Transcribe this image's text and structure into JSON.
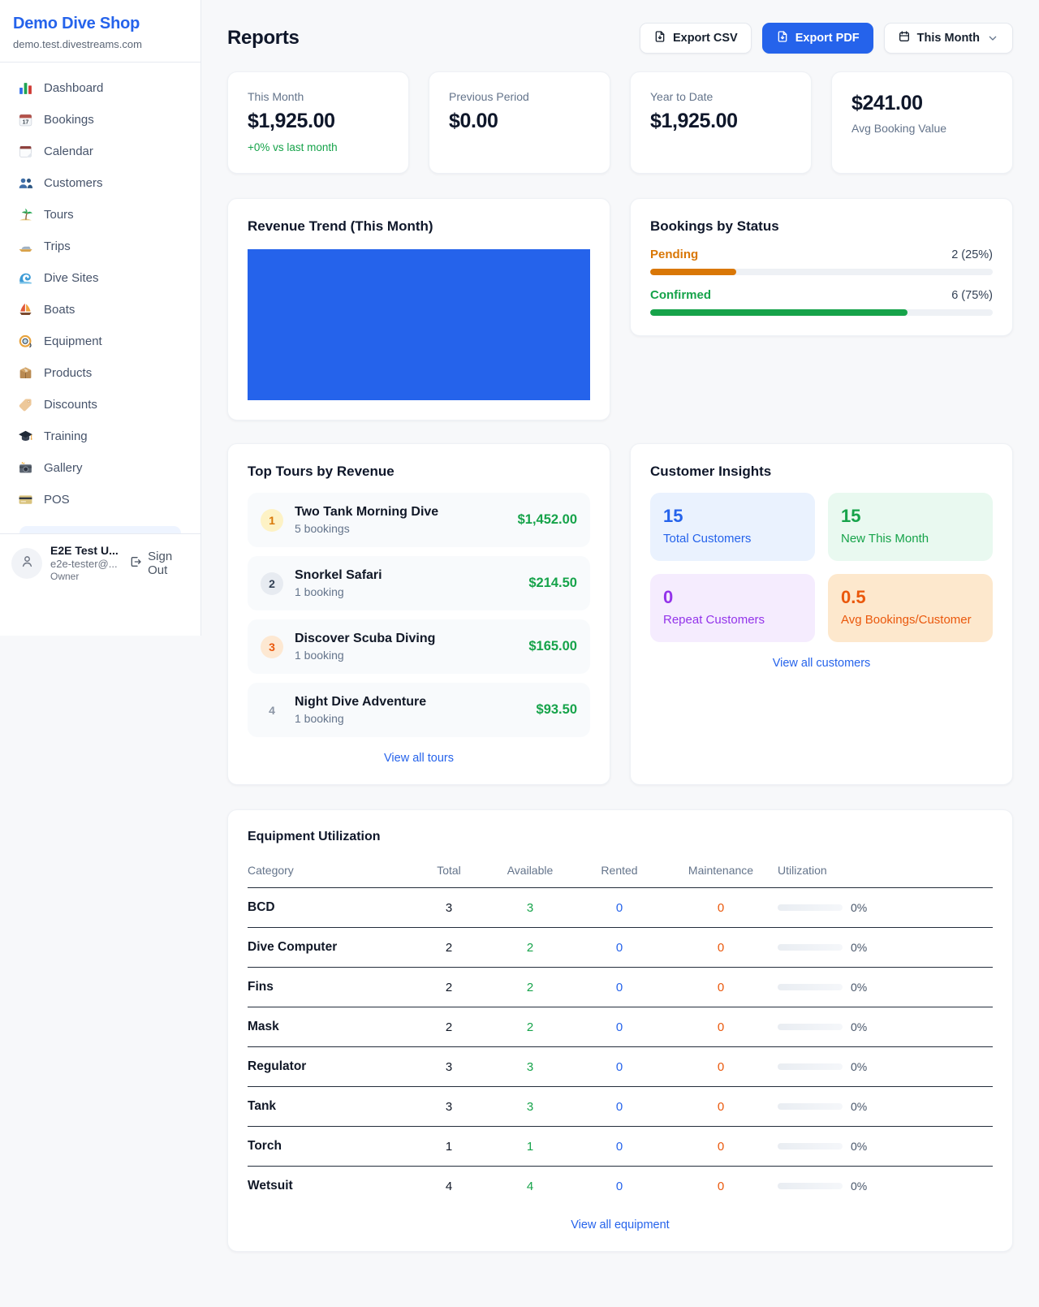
{
  "sidebar": {
    "shop_name": "Demo Dive Shop",
    "shop_domain": "demo.test.divestreams.com",
    "items": [
      {
        "label": "Dashboard",
        "icon": "bar-chart-icon"
      },
      {
        "label": "Bookings",
        "icon": "calendar-date-icon"
      },
      {
        "label": "Calendar",
        "icon": "tear-calendar-icon"
      },
      {
        "label": "Customers",
        "icon": "users-icon"
      },
      {
        "label": "Tours",
        "icon": "island-icon"
      },
      {
        "label": "Trips",
        "icon": "speedboat-icon"
      },
      {
        "label": "Dive Sites",
        "icon": "wave-icon"
      },
      {
        "label": "Boats",
        "icon": "sailboat-icon"
      },
      {
        "label": "Equipment",
        "icon": "dive-mask-icon"
      },
      {
        "label": "Products",
        "icon": "package-icon"
      },
      {
        "label": "Discounts",
        "icon": "tag-icon"
      },
      {
        "label": "Training",
        "icon": "graduation-cap-icon"
      },
      {
        "label": "Gallery",
        "icon": "camera-icon"
      },
      {
        "label": "POS",
        "icon": "credit-card-icon"
      }
    ],
    "user": {
      "name": "E2E Test U...",
      "email": "e2e-tester@...",
      "role": "Owner",
      "sign_out_label": "Sign Out"
    }
  },
  "header": {
    "title": "Reports",
    "export_csv_label": "Export CSV",
    "export_pdf_label": "Export PDF",
    "period_label": "This Month"
  },
  "stats": [
    {
      "label": "This Month",
      "value": "$1,925.00",
      "change": "+0% vs last month"
    },
    {
      "label": "Previous Period",
      "value": "$0.00"
    },
    {
      "label": "Year to Date",
      "value": "$1,925.00"
    },
    {
      "label": "Avg Booking Value",
      "value": "$241.00"
    }
  ],
  "revenue_trend": {
    "title": "Revenue Trend (This Month)"
  },
  "bookings_status": {
    "title": "Bookings by Status",
    "items": [
      {
        "label": "Pending",
        "count_text": "2 (25%)",
        "percent": 25
      },
      {
        "label": "Confirmed",
        "count_text": "6 (75%)",
        "percent": 75
      }
    ]
  },
  "top_tours": {
    "title": "Top Tours by Revenue",
    "view_all": "View all tours",
    "items": [
      {
        "rank": "1",
        "name": "Two Tank Morning Dive",
        "bookings": "5 bookings",
        "revenue": "$1,452.00"
      },
      {
        "rank": "2",
        "name": "Snorkel Safari",
        "bookings": "1 booking",
        "revenue": "$214.50"
      },
      {
        "rank": "3",
        "name": "Discover Scuba Diving",
        "bookings": "1 booking",
        "revenue": "$165.00"
      },
      {
        "rank": "4",
        "name": "Night Dive Adventure",
        "bookings": "1 booking",
        "revenue": "$93.50"
      }
    ]
  },
  "customer_insights": {
    "title": "Customer Insights",
    "view_all": "View all customers",
    "tiles": [
      {
        "value": "15",
        "label": "Total Customers"
      },
      {
        "value": "15",
        "label": "New This Month"
      },
      {
        "value": "0",
        "label": "Repeat Customers"
      },
      {
        "value": "0.5",
        "label": "Avg Bookings/Customer"
      }
    ]
  },
  "equipment": {
    "title": "Equipment Utilization",
    "view_all": "View all equipment",
    "columns": [
      "Category",
      "Total",
      "Available",
      "Rented",
      "Maintenance",
      "Utilization"
    ],
    "rows": [
      {
        "category": "BCD",
        "total": "3",
        "available": "3",
        "rented": "0",
        "maintenance": "0",
        "utilization": "0%",
        "utilization_pct": 0
      },
      {
        "category": "Dive Computer",
        "total": "2",
        "available": "2",
        "rented": "0",
        "maintenance": "0",
        "utilization": "0%",
        "utilization_pct": 0
      },
      {
        "category": "Fins",
        "total": "2",
        "available": "2",
        "rented": "0",
        "maintenance": "0",
        "utilization": "0%",
        "utilization_pct": 0
      },
      {
        "category": "Mask",
        "total": "2",
        "available": "2",
        "rented": "0",
        "maintenance": "0",
        "utilization": "0%",
        "utilization_pct": 0
      },
      {
        "category": "Regulator",
        "total": "3",
        "available": "3",
        "rented": "0",
        "maintenance": "0",
        "utilization": "0%",
        "utilization_pct": 0
      },
      {
        "category": "Tank",
        "total": "3",
        "available": "3",
        "rented": "0",
        "maintenance": "0",
        "utilization": "0%",
        "utilization_pct": 0
      },
      {
        "category": "Torch",
        "total": "1",
        "available": "1",
        "rented": "0",
        "maintenance": "0",
        "utilization": "0%",
        "utilization_pct": 0
      },
      {
        "category": "Wetsuit",
        "total": "4",
        "available": "4",
        "rented": "0",
        "maintenance": "0",
        "utilization": "0%",
        "utilization_pct": 0
      }
    ]
  },
  "colors": {
    "primary_blue": "#2563eb",
    "chart_fill": "#2563eb",
    "green": "#16a34a",
    "amber": "#d97706",
    "orange": "#ea580c",
    "purple": "#9333ea"
  }
}
